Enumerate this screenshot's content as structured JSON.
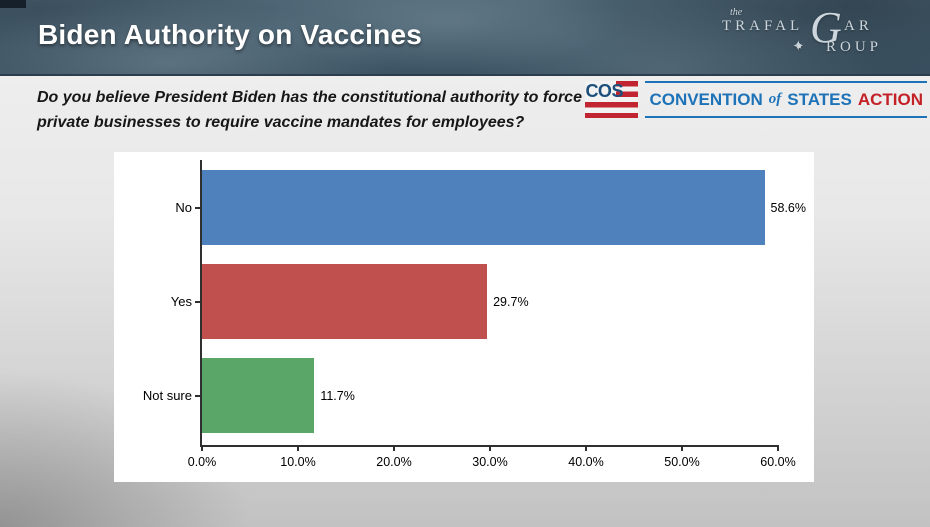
{
  "header": {
    "title": "Biden Authority on Vaccines"
  },
  "question": "Do you believe President Biden has the constitutional authority to force private businesses to require vaccine mandates for employees?",
  "trafalgar_logo": {
    "the": "the",
    "trafal": "TRAFAL",
    "g": "G",
    "ar": "AR",
    "roup": "ROUP",
    "compass_glyph": "✦",
    "color": "#ccd6dc"
  },
  "cos_logo": {
    "flag_text": "COS",
    "convention": "CONVENTION",
    "of": "of",
    "states": "STATES",
    "action": "ACTION",
    "blue": "#1e73b8",
    "red": "#c42127",
    "flag_navy": "#1d4f7c",
    "stripe_red": "#c02531"
  },
  "chart_data": {
    "type": "bar",
    "orientation": "horizontal",
    "title": "",
    "categories": [
      "No",
      "Yes",
      "Not sure"
    ],
    "values": [
      58.6,
      29.7,
      11.7
    ],
    "value_labels": [
      "58.6%",
      "29.7%",
      "11.7%"
    ],
    "bar_colors": [
      "#4f81bd",
      "#c0504d",
      "#5aa568"
    ],
    "x_ticks": [
      "0.0%",
      "10.0%",
      "20.0%",
      "30.0%",
      "40.0%",
      "50.0%",
      "60.0%"
    ],
    "x_tick_values": [
      0,
      10,
      20,
      30,
      40,
      50,
      60
    ],
    "xlim": [
      0,
      60
    ],
    "grid": false,
    "legend": false,
    "plot_background": "#ffffff"
  }
}
